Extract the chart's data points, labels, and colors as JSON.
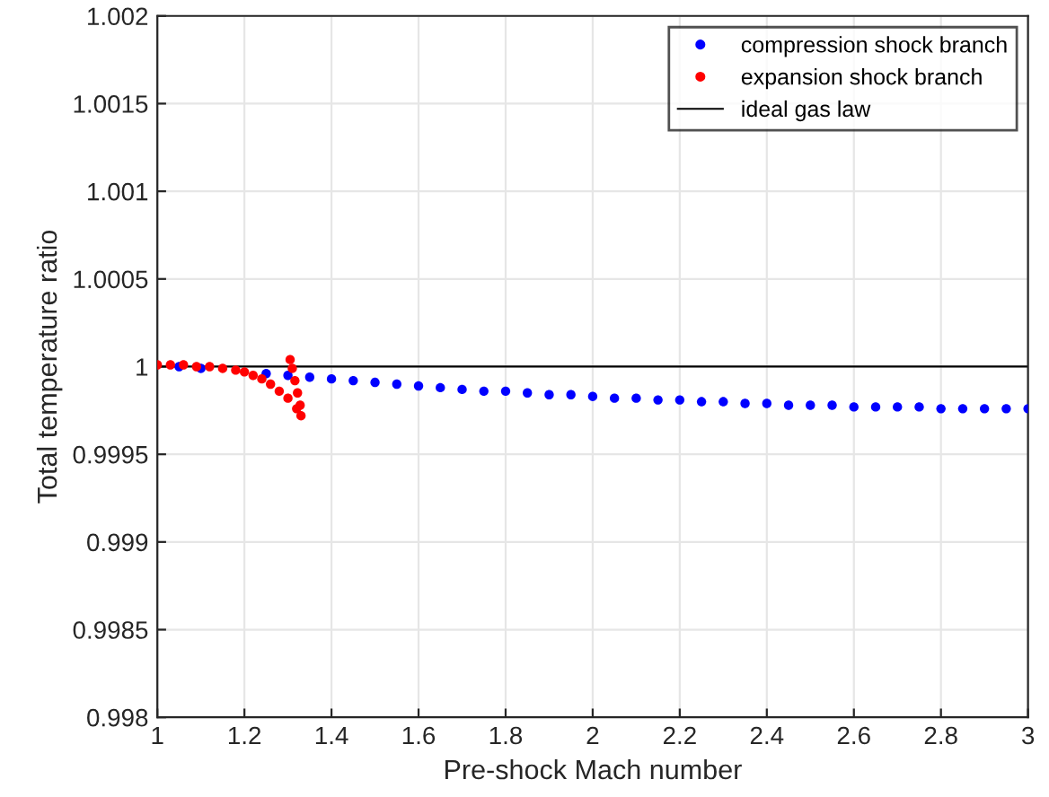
{
  "chart_data": {
    "type": "scatter",
    "xlabel": "Pre-shock Mach number",
    "ylabel": "Total temperature ratio",
    "xlim": [
      1,
      3
    ],
    "xticks": [
      1,
      1.2,
      1.4,
      1.6,
      1.8,
      2,
      2.2,
      2.4,
      2.6,
      2.8,
      3
    ],
    "ylim": [
      0.998,
      1.002
    ],
    "yticks": [
      0.998,
      0.9985,
      0.999,
      0.9995,
      1,
      1.0005,
      1.001,
      1.0015,
      1.002
    ],
    "grid": true,
    "legend": "top right",
    "marker": "circle",
    "series": [
      {
        "name": "compression shock branch",
        "color": "#0000ff",
        "x": [
          1.05,
          1.1,
          1.25,
          1.3,
          1.35,
          1.4,
          1.45,
          1.5,
          1.55,
          1.6,
          1.65,
          1.7,
          1.75,
          1.8,
          1.85,
          1.9,
          1.95,
          2.0,
          2.05,
          2.1,
          2.15,
          2.2,
          2.25,
          2.3,
          2.35,
          2.4,
          2.45,
          2.5,
          2.55,
          2.6,
          2.65,
          2.7,
          2.75,
          2.8,
          2.85,
          2.9,
          2.95,
          3.0
        ],
        "values": [
          1.0,
          0.99999,
          0.99996,
          0.99995,
          0.99994,
          0.99993,
          0.99992,
          0.99991,
          0.9999,
          0.99989,
          0.99988,
          0.99987,
          0.99986,
          0.99986,
          0.99985,
          0.99984,
          0.99984,
          0.99983,
          0.99982,
          0.99982,
          0.99981,
          0.99981,
          0.9998,
          0.9998,
          0.99979,
          0.99979,
          0.99978,
          0.99978,
          0.99978,
          0.99977,
          0.99977,
          0.99977,
          0.99977,
          0.99976,
          0.99976,
          0.99976,
          0.99976,
          0.99976
        ]
      },
      {
        "name": "expansion shock branch",
        "color": "#ff0000",
        "x": [
          1.0,
          1.03,
          1.06,
          1.09,
          1.12,
          1.15,
          1.18,
          1.2,
          1.22,
          1.24,
          1.26,
          1.28,
          1.3,
          1.32,
          1.33,
          1.328,
          1.322,
          1.316,
          1.31,
          1.305
        ],
        "values": [
          1.00001,
          1.00001,
          1.00001,
          1.0,
          1.0,
          0.99999,
          0.99998,
          0.99997,
          0.99995,
          0.99993,
          0.9999,
          0.99986,
          0.99982,
          0.99976,
          0.99972,
          0.99978,
          0.99985,
          0.99992,
          0.99999,
          1.00004
        ]
      }
    ],
    "ref_lines": [
      {
        "axis": "y",
        "value": 1,
        "label": "ideal gas law",
        "color": "#000000",
        "line_style": "solid"
      }
    ]
  }
}
